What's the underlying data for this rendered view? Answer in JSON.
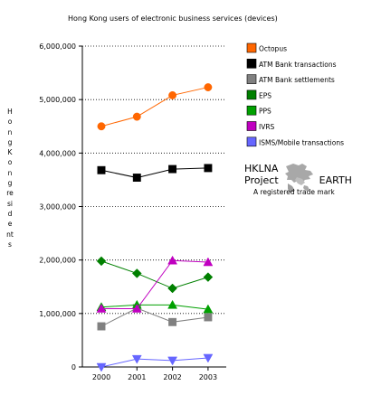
{
  "chart_data": {
    "type": "line",
    "title": "Hong Kong users of electronic business services (devices)",
    "ylabel": "Hong Kong residents",
    "xlabel": "",
    "x": [
      "2000",
      "2001",
      "2002",
      "2003"
    ],
    "ylim": [
      0,
      6000000
    ],
    "yticks": [
      "0",
      "1,000,000",
      "2,000,000",
      "3,000,000",
      "4,000,000",
      "5,000,000",
      "6,000,000"
    ],
    "grid": "horizontal dotted",
    "legend_position": "right",
    "series": [
      {
        "name": "Octopus",
        "color": "#ff6600",
        "marker": "circle",
        "values": [
          4500000,
          4680000,
          5080000,
          5230000
        ]
      },
      {
        "name": "ATM Bank transactions",
        "color": "#000000",
        "marker": "square",
        "values": [
          3680000,
          3540000,
          3700000,
          3720000
        ]
      },
      {
        "name": "ATM Bank settlements",
        "color": "#808080",
        "marker": "square",
        "values": [
          760000,
          1100000,
          840000,
          930000
        ]
      },
      {
        "name": "EPS",
        "color": "#008000",
        "marker": "diamond",
        "values": [
          1980000,
          1750000,
          1470000,
          1680000
        ]
      },
      {
        "name": "PPS",
        "color": "#00a000",
        "marker": "triangle-up",
        "values": [
          1120000,
          1160000,
          1160000,
          1080000
        ]
      },
      {
        "name": "IVRS",
        "color": "#c000c0",
        "marker": "triangle-up",
        "values": [
          1090000,
          1090000,
          1990000,
          1960000
        ]
      },
      {
        "name": "ISMS/Mobile transactions",
        "color": "#6666ff",
        "marker": "triangle-down",
        "values": [
          0,
          150000,
          120000,
          170000
        ]
      }
    ]
  },
  "brand": {
    "line1": "HKLNA",
    "line2a": "Project",
    "line2b": "EARTH",
    "line3": "A registered trade mark",
    "logo_icon": "hong-kong-map-icon"
  }
}
